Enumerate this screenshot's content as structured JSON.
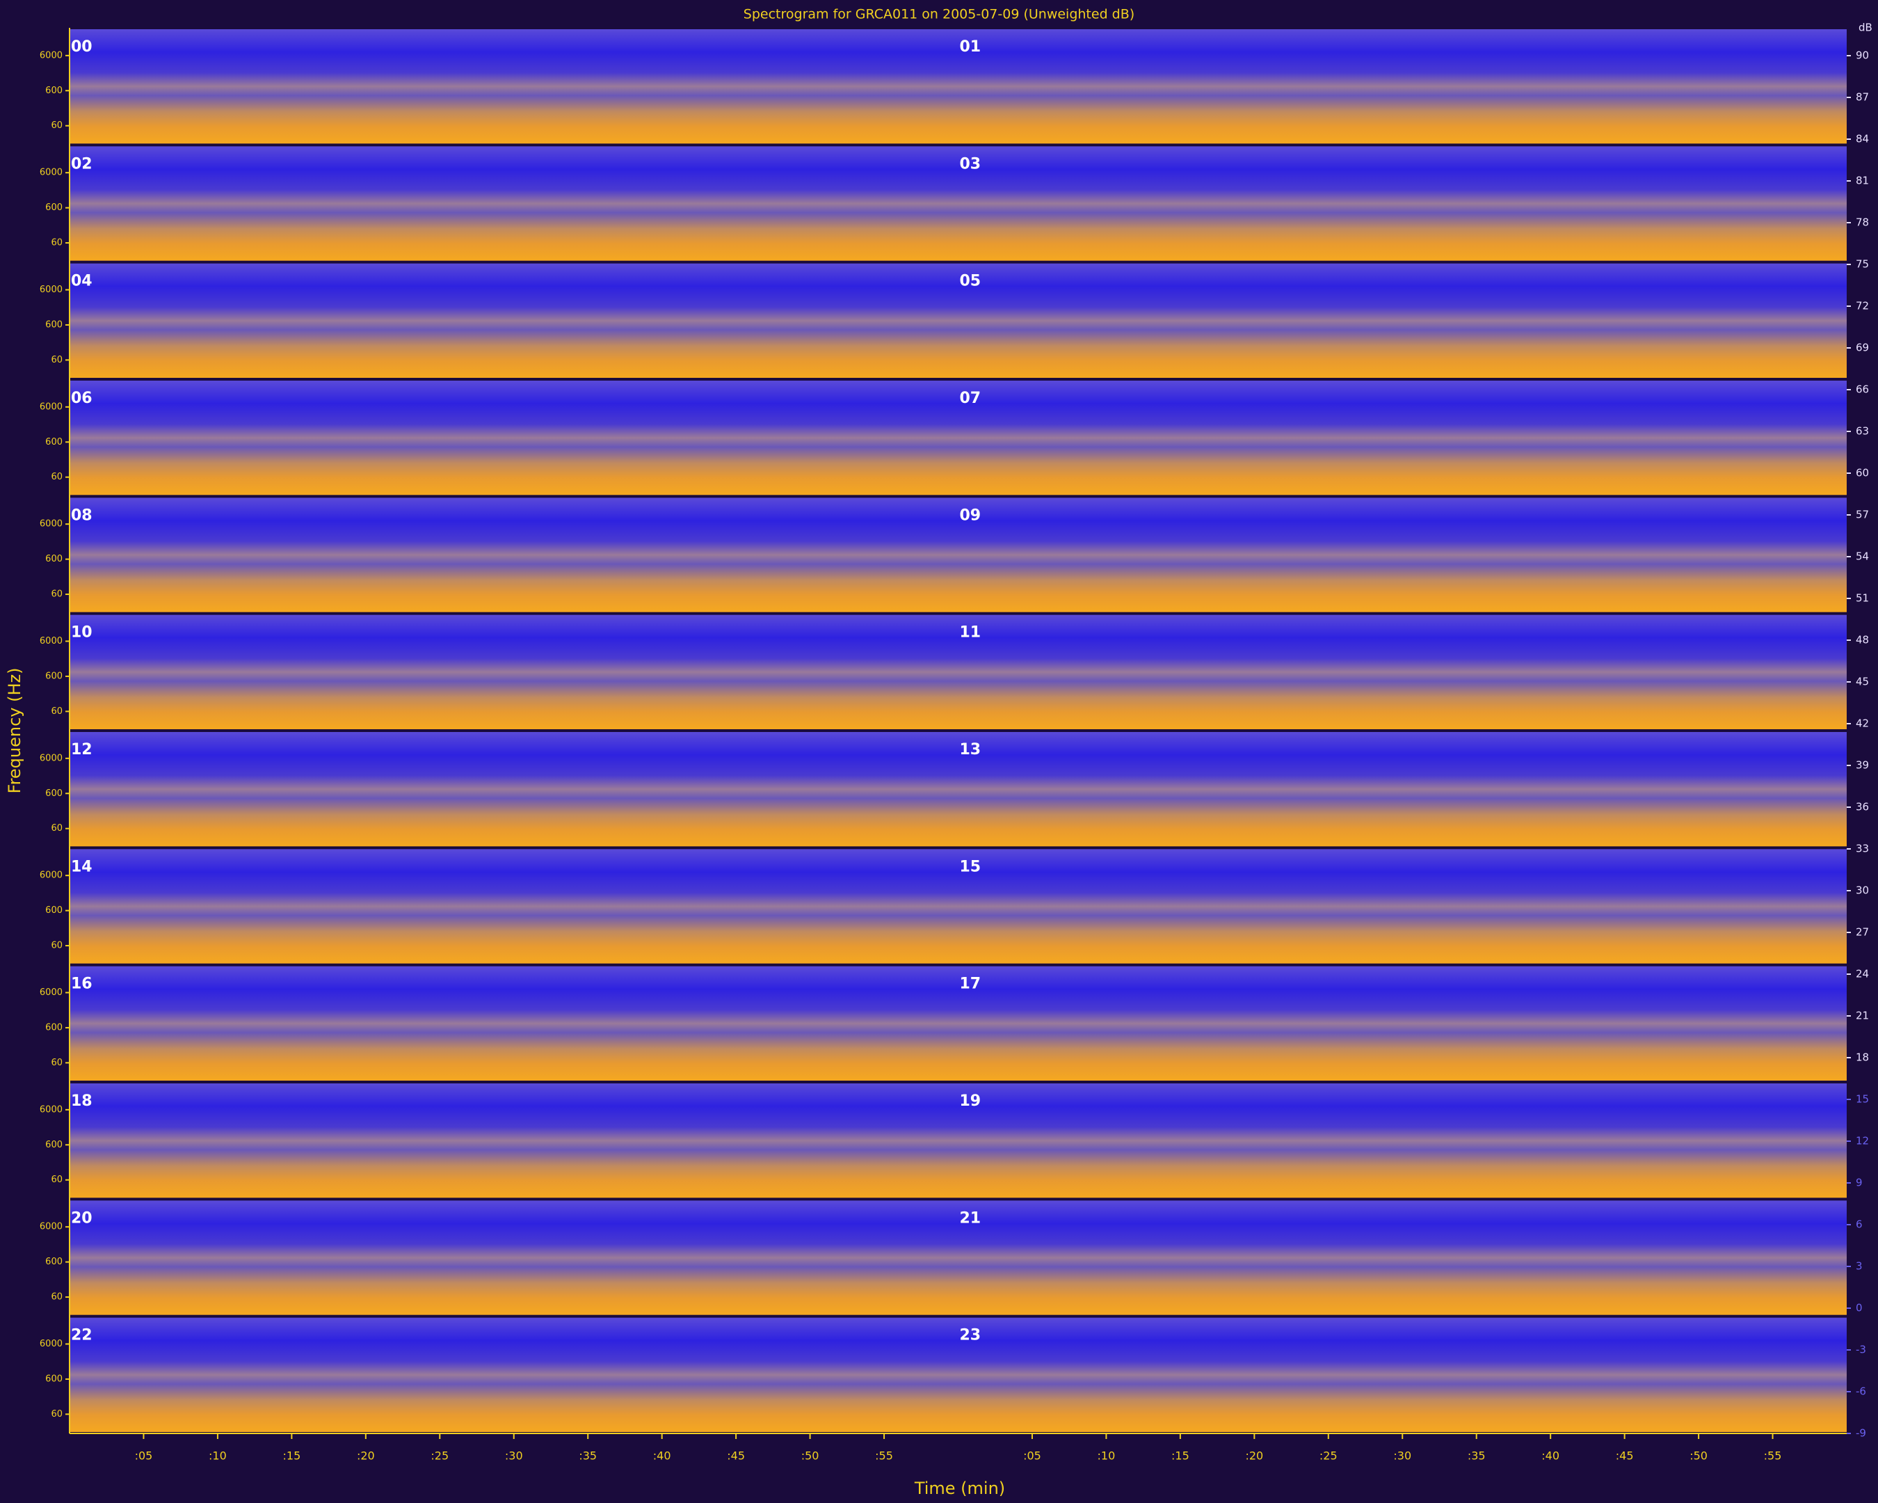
{
  "chart_data": {
    "type": "spectrogram",
    "title": "Spectrogram for GRCA011 on 2005-07-09 (Unweighted dB)",
    "x_label": "Time (min)",
    "y_label": "Frequency (Hz)",
    "hours": [
      "00",
      "01",
      "02",
      "03",
      "04",
      "05",
      "06",
      "07",
      "08",
      "09",
      "10",
      "11",
      "12",
      "13",
      "14",
      "15",
      "16",
      "17",
      "18",
      "19",
      "20",
      "21",
      "22",
      "23"
    ],
    "xlim": [
      0,
      60
    ],
    "xticks": [
      {
        "value": 5,
        "label": ":05"
      },
      {
        "value": 10,
        "label": ":10"
      },
      {
        "value": 15,
        "label": ":15"
      },
      {
        "value": 20,
        "label": ":20"
      },
      {
        "value": 25,
        "label": ":25"
      },
      {
        "value": 30,
        "label": ":30"
      },
      {
        "value": 35,
        "label": ":35"
      },
      {
        "value": 40,
        "label": ":40"
      },
      {
        "value": 45,
        "label": ":45"
      },
      {
        "value": 50,
        "label": ":50"
      },
      {
        "value": 55,
        "label": ":55"
      }
    ],
    "ylim": [
      17,
      37000
    ],
    "log_y": true,
    "yticks": [
      60,
      600,
      6000
    ],
    "colorbar_label": "dB",
    "clim": [
      -9,
      92
    ],
    "cticks": [
      90,
      87,
      84,
      81,
      78,
      75,
      72,
      69,
      66,
      63,
      60,
      57,
      54,
      51,
      48,
      45,
      42,
      39,
      36,
      33,
      30,
      27,
      24,
      21,
      18,
      15,
      12,
      9,
      6,
      3,
      0,
      -3,
      -6,
      -9
    ]
  }
}
